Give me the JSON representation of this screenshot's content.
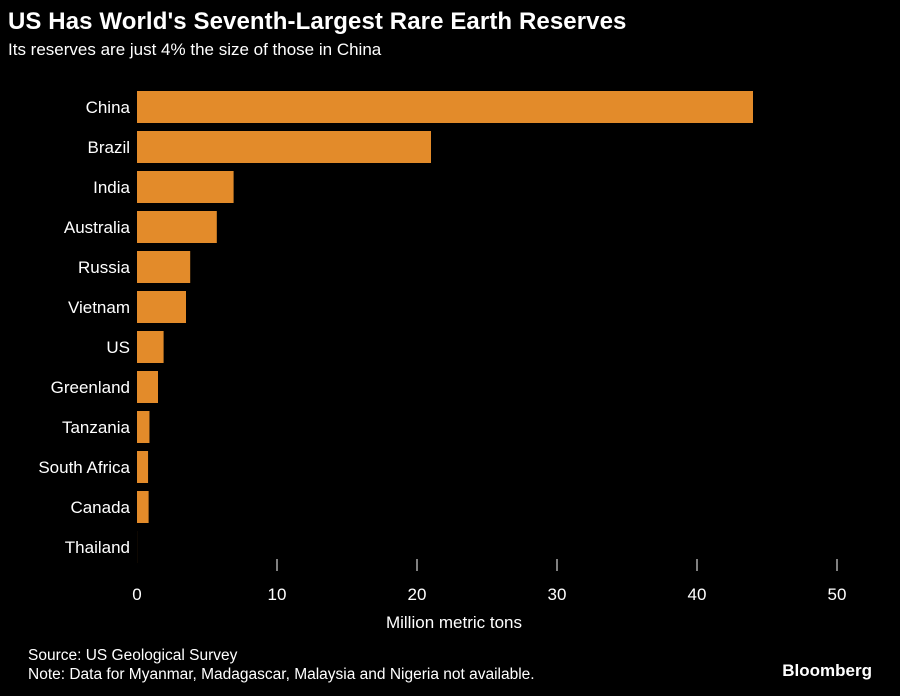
{
  "header": {
    "title": "US Has World's Seventh-Largest Rare Earth Reserves",
    "subtitle": "Its reserves are just 4% the size of those in China"
  },
  "footer": {
    "source": "Source: US Geological Survey",
    "note": "Note: Data for Myanmar, Madagascar, Malaysia and Nigeria not available.",
    "brand": "Bloomberg"
  },
  "colors": {
    "background": "#000000",
    "bar": "#e38b2a",
    "text": "#ffffff",
    "tick": "#ffffff"
  },
  "chart_data": {
    "type": "bar",
    "orientation": "horizontal",
    "categories": [
      "China",
      "Brazil",
      "India",
      "Australia",
      "Russia",
      "Vietnam",
      "US",
      "Greenland",
      "Tanzania",
      "South Africa",
      "Canada",
      "Thailand"
    ],
    "values": [
      44,
      21,
      6.9,
      5.7,
      3.8,
      3.5,
      1.9,
      1.5,
      0.89,
      0.79,
      0.83,
      0.0045
    ],
    "title": "US Has World's Seventh-Largest Rare Earth Reserves",
    "subtitle": "Its reserves are just 4% the size of those in China",
    "xlabel": "Million metric tons",
    "ylabel": "",
    "xlim": [
      0,
      50
    ],
    "xticks": [
      0,
      10,
      20,
      30,
      40,
      50
    ],
    "grid": false,
    "legend": "none"
  }
}
